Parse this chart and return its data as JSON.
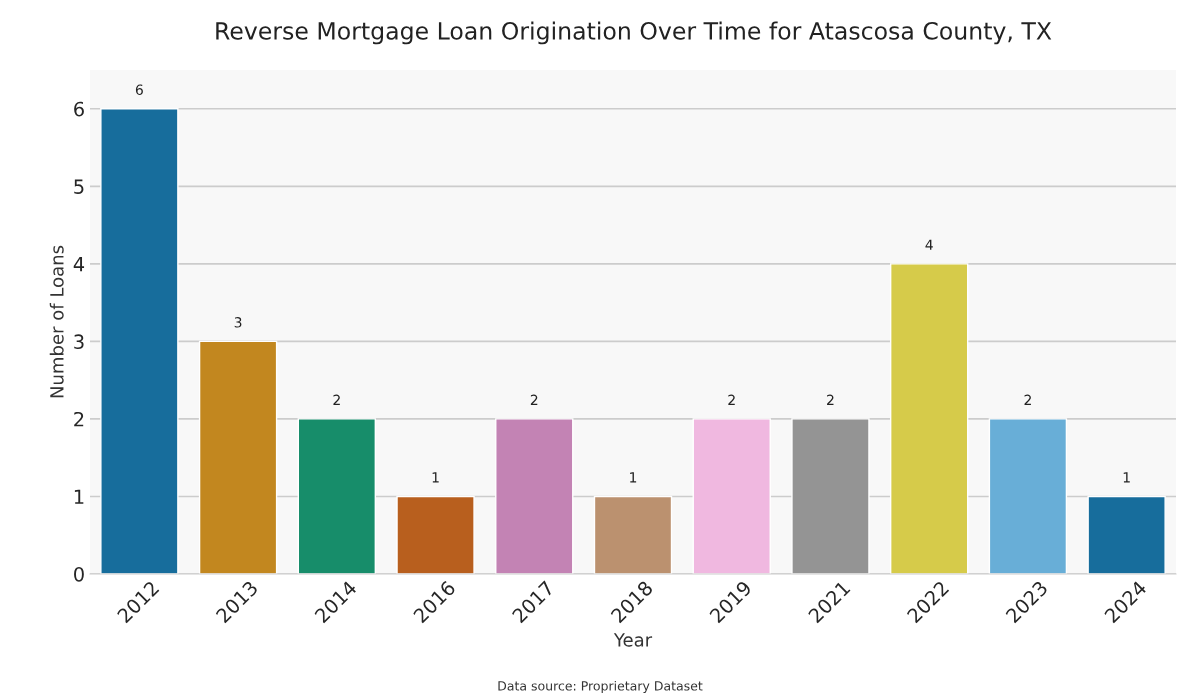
{
  "chart_data": {
    "type": "bar",
    "title": "Reverse Mortgage Loan Origination Over Time for Atascosa County, TX",
    "xlabel": "Year",
    "ylabel": "Number of Loans",
    "categories": [
      "2012",
      "2013",
      "2014",
      "2016",
      "2017",
      "2018",
      "2019",
      "2021",
      "2022",
      "2023",
      "2024"
    ],
    "values": [
      6,
      3,
      2,
      1,
      2,
      1,
      2,
      2,
      4,
      2,
      1
    ],
    "colors": [
      "#176d9c",
      "#c2871f",
      "#178d6a",
      "#b85f1e",
      "#c383b4",
      "#bb916f",
      "#f0b8e0",
      "#949494",
      "#d6cb4a",
      "#68aed7",
      "#176d9c"
    ],
    "ylim": [
      0,
      6.5
    ],
    "yticks": [
      0,
      1,
      2,
      3,
      4,
      5,
      6
    ],
    "grid": "y",
    "data_labels": true,
    "annotations": [
      "Data source: Proprietary Dataset"
    ]
  }
}
